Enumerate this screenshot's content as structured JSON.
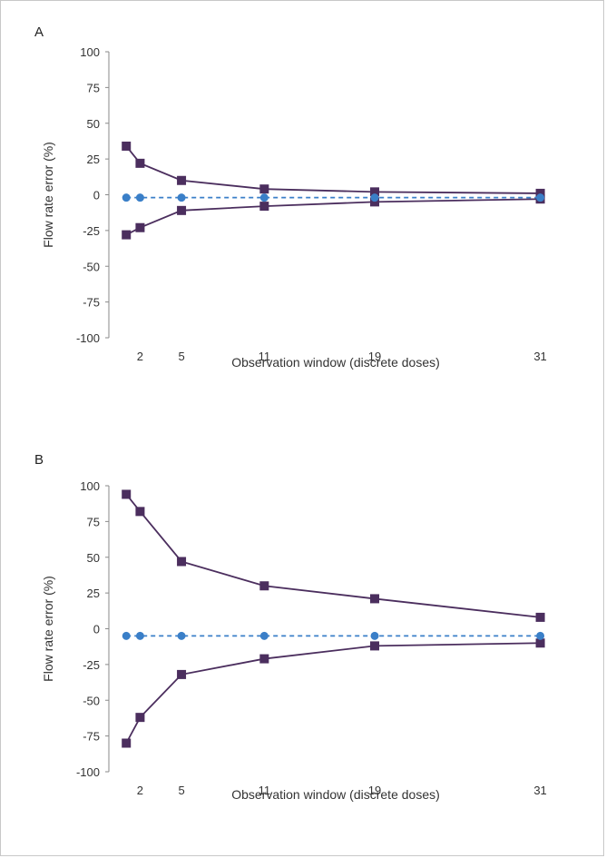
{
  "chart_data": [
    {
      "type": "line",
      "panel_label": "A",
      "xlabel": "Observation window (discrete doses)",
      "ylabel": "Flow rate error (%)",
      "ylim": [
        -100,
        100
      ],
      "yticks": [
        100,
        75,
        50,
        25,
        0,
        -25,
        -50,
        -75,
        -100
      ],
      "xticks": [
        2,
        5,
        11,
        19,
        31
      ],
      "xlim": [
        0,
        33
      ],
      "grid": false,
      "series": [
        {
          "color": "#4b2e5e",
          "marker": "square",
          "line": "solid",
          "points": [
            [
              1,
              34
            ],
            [
              2,
              22
            ],
            [
              5,
              10
            ],
            [
              11,
              4
            ],
            [
              19,
              2
            ],
            [
              31,
              1
            ]
          ]
        },
        {
          "color": "#4b2e5e",
          "marker": "square",
          "line": "solid",
          "points": [
            [
              1,
              -28
            ],
            [
              2,
              -23
            ],
            [
              5,
              -11
            ],
            [
              11,
              -8
            ],
            [
              19,
              -5
            ],
            [
              31,
              -3
            ]
          ]
        },
        {
          "color": "#3a7fc8",
          "marker": "circle",
          "line": "dashed",
          "points": [
            [
              1,
              -2
            ],
            [
              2,
              -2
            ],
            [
              5,
              -2
            ],
            [
              11,
              -2
            ],
            [
              19,
              -2
            ],
            [
              31,
              -2
            ]
          ]
        }
      ]
    },
    {
      "type": "line",
      "panel_label": "B",
      "xlabel": "Observation window (discrete doses)",
      "ylabel": "Flow rate error (%)",
      "ylim": [
        -100,
        100
      ],
      "yticks": [
        100,
        75,
        50,
        25,
        0,
        -25,
        -50,
        -75,
        -100
      ],
      "xticks": [
        2,
        5,
        11,
        19,
        31
      ],
      "xlim": [
        0,
        33
      ],
      "grid": false,
      "series": [
        {
          "color": "#4b2e5e",
          "marker": "square",
          "line": "solid",
          "points": [
            [
              1,
              94
            ],
            [
              2,
              82
            ],
            [
              5,
              47
            ],
            [
              11,
              30
            ],
            [
              19,
              21
            ],
            [
              31,
              8
            ]
          ]
        },
        {
          "color": "#4b2e5e",
          "marker": "square",
          "line": "solid",
          "points": [
            [
              1,
              -80
            ],
            [
              2,
              -62
            ],
            [
              5,
              -32
            ],
            [
              11,
              -21
            ],
            [
              19,
              -12
            ],
            [
              31,
              -10
            ]
          ]
        },
        {
          "color": "#3a7fc8",
          "marker": "circle",
          "line": "dashed",
          "points": [
            [
              1,
              -5
            ],
            [
              2,
              -5
            ],
            [
              5,
              -5
            ],
            [
              11,
              -5
            ],
            [
              19,
              -5
            ],
            [
              31,
              -5
            ]
          ]
        }
      ]
    }
  ]
}
